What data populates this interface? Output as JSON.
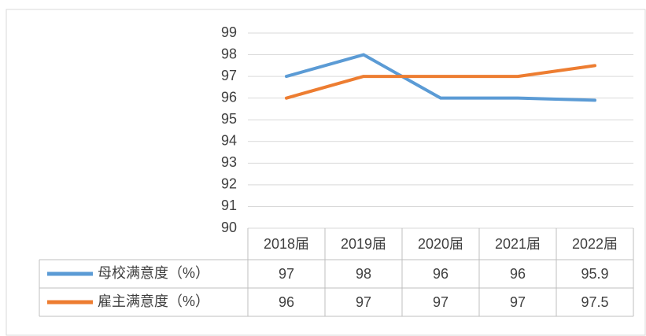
{
  "chart_data": {
    "type": "line",
    "categories": [
      "2018届",
      "2019届",
      "2020届",
      "2021届",
      "2022届"
    ],
    "series": [
      {
        "name": "母校满意度（%）",
        "color": "#5b9bd5",
        "values": [
          97,
          98,
          96,
          96,
          95.9
        ]
      },
      {
        "name": "雇主满意度（%）",
        "color": "#ed7d31",
        "values": [
          96,
          97,
          97,
          97,
          97.5
        ]
      }
    ],
    "ylim": [
      90,
      99
    ],
    "yticks": [
      90,
      91,
      92,
      93,
      94,
      95,
      96,
      97,
      98,
      99
    ],
    "grid": true
  }
}
